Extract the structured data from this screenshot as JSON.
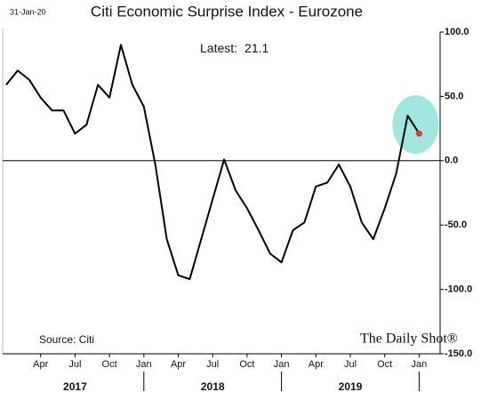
{
  "chart_data": {
    "type": "line",
    "title": "Citi Economic Surprise Index - Eurozone",
    "date_label": "31-Jan-20",
    "annotation": "Latest:",
    "source": "Source: Citi",
    "brand": "The Daily Shot®",
    "x": [
      "2017-01",
      "2017-02",
      "2017-03",
      "2017-04",
      "2017-05",
      "2017-06",
      "2017-07",
      "2017-08",
      "2017-09",
      "2017-10",
      "2017-11",
      "2017-12",
      "2018-01",
      "2018-02",
      "2018-03",
      "2018-04",
      "2018-05",
      "2018-06",
      "2018-07",
      "2018-08",
      "2018-09",
      "2018-10",
      "2018-11",
      "2018-12",
      "2019-01",
      "2019-02",
      "2019-03",
      "2019-04",
      "2019-05",
      "2019-06",
      "2019-07",
      "2019-08",
      "2019-09",
      "2019-10",
      "2019-11",
      "2019-12",
      "2020-01"
    ],
    "values": [
      59,
      70,
      63,
      49,
      39,
      39,
      21,
      28,
      59,
      49,
      90,
      59,
      42,
      -3,
      -61,
      -89,
      -92,
      -61,
      -30,
      1,
      -23,
      -37,
      -54,
      -72,
      -79,
      -54,
      -48,
      -20,
      -17,
      -3,
      -20,
      -48,
      -61,
      -37,
      -10,
      35,
      21.1
    ],
    "color": "#000000",
    "highlight_color": "#8fe3dc",
    "latest_color": "#e0392b",
    "ylim": [
      -150,
      100
    ],
    "yticks": [
      {
        "value": -150,
        "label": "-150.0"
      },
      {
        "value": -100,
        "label": "-100.0"
      },
      {
        "value": -50,
        "label": "-50.0"
      },
      {
        "value": 0,
        "label": "0.0"
      },
      {
        "value": 50,
        "label": "50.0"
      },
      {
        "value": 100,
        "label": "100.0"
      }
    ],
    "xticks": [
      {
        "value": "2017-04",
        "label": "Apr"
      },
      {
        "value": "2017-07",
        "label": "Jul"
      },
      {
        "value": "2017-10",
        "label": "Oct"
      },
      {
        "value": "2018-01",
        "label": "Jan"
      },
      {
        "value": "2018-04",
        "label": "Apr"
      },
      {
        "value": "2018-07",
        "label": "Jul"
      },
      {
        "value": "2018-10",
        "label": "Oct"
      },
      {
        "value": "2019-01",
        "label": "Jan"
      },
      {
        "value": "2019-04",
        "label": "Apr"
      },
      {
        "value": "2019-07",
        "label": "Jul"
      },
      {
        "value": "2019-10",
        "label": "Oct"
      },
      {
        "value": "2020-01",
        "label": "Jan"
      }
    ],
    "year_labels": [
      {
        "value": "2017-07",
        "label": "2017"
      },
      {
        "value": "2018-07",
        "label": "2018"
      },
      {
        "value": "2019-07",
        "label": "2019"
      }
    ]
  }
}
